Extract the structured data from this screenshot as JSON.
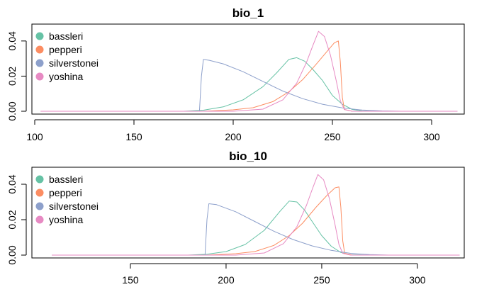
{
  "chart_data": [
    {
      "type": "line",
      "title": "bio_1",
      "xlabel": "",
      "ylabel": "",
      "xlim": [
        100,
        315
      ],
      "ylim": [
        0,
        0.048
      ],
      "xticks": [
        100,
        150,
        200,
        250,
        300
      ],
      "yticks": [
        0.0,
        0.02,
        0.04
      ],
      "ytick_labels": [
        "0.00",
        "0.02",
        "0.04"
      ],
      "legend": "top-left",
      "series": [
        {
          "name": "bassleri",
          "color": "#66c2a5",
          "points": [
            [
              103,
              0
            ],
            [
              175,
              0
            ],
            [
              185,
              0.0006
            ],
            [
              195,
              0.0025
            ],
            [
              205,
              0.0065
            ],
            [
              215,
              0.014
            ],
            [
              222,
              0.022
            ],
            [
              228,
              0.0295
            ],
            [
              232,
              0.0305
            ],
            [
              236,
              0.0285
            ],
            [
              240,
              0.024
            ],
            [
              245,
              0.0175
            ],
            [
              250,
              0.009
            ],
            [
              255,
              0.004
            ],
            [
              260,
              0.001
            ],
            [
              265,
              0.0002
            ],
            [
              272,
              0
            ],
            [
              313,
              0
            ]
          ]
        },
        {
          "name": "pepperi",
          "color": "#fc8d62",
          "points": [
            [
              103,
              0
            ],
            [
              185,
              0
            ],
            [
              200,
              0.0008
            ],
            [
              210,
              0.002
            ],
            [
              220,
              0.0055
            ],
            [
              228,
              0.011
            ],
            [
              235,
              0.018
            ],
            [
              242,
              0.027
            ],
            [
              248,
              0.035
            ],
            [
              251,
              0.039
            ],
            [
              253,
              0.04
            ],
            [
              254,
              0.028
            ],
            [
              255,
              0.008
            ],
            [
              256,
              0.001
            ],
            [
              260,
              0
            ],
            [
              313,
              0
            ]
          ]
        },
        {
          "name": "silverstonei",
          "color": "#8da0cb",
          "points": [
            [
              103,
              0
            ],
            [
              183,
              0
            ],
            [
              184,
              0.02
            ],
            [
              185,
              0.0295
            ],
            [
              188,
              0.029
            ],
            [
              195,
              0.027
            ],
            [
              205,
              0.0225
            ],
            [
              215,
              0.017
            ],
            [
              225,
              0.0115
            ],
            [
              235,
              0.0072
            ],
            [
              245,
              0.004
            ],
            [
              255,
              0.0019
            ],
            [
              265,
              0.0007
            ],
            [
              275,
              0.0002
            ],
            [
              285,
              0
            ],
            [
              313,
              0
            ]
          ]
        },
        {
          "name": "yoshina",
          "color": "#e78ac3",
          "points": [
            [
              103,
              0
            ],
            [
              200,
              0
            ],
            [
              215,
              0.0012
            ],
            [
              225,
              0.0065
            ],
            [
              232,
              0.016
            ],
            [
              237,
              0.028
            ],
            [
              240,
              0.037
            ],
            [
              243,
              0.0455
            ],
            [
              246,
              0.0425
            ],
            [
              249,
              0.032
            ],
            [
              252,
              0.017
            ],
            [
              254,
              0.006
            ],
            [
              256,
              0.001
            ],
            [
              260,
              0
            ],
            [
              313,
              0
            ]
          ]
        }
      ]
    },
    {
      "type": "line",
      "title": "bio_10",
      "xlabel": "",
      "ylabel": "",
      "xlim": [
        100,
        323
      ],
      "ylim": [
        0,
        0.048
      ],
      "xticks": [
        150,
        200,
        250,
        300
      ],
      "yticks": [
        0.0,
        0.02,
        0.04
      ],
      "ytick_labels": [
        "0.00",
        "0.02",
        "0.04"
      ],
      "legend": "top-left",
      "series": [
        {
          "name": "bassleri",
          "color": "#66c2a5",
          "points": [
            [
              109,
              0
            ],
            [
              180,
              0
            ],
            [
              190,
              0.0005
            ],
            [
              200,
              0.002
            ],
            [
              210,
              0.006
            ],
            [
              220,
              0.014
            ],
            [
              228,
              0.0245
            ],
            [
              233,
              0.0305
            ],
            [
              237,
              0.03
            ],
            [
              241,
              0.0255
            ],
            [
              245,
              0.019
            ],
            [
              250,
              0.011
            ],
            [
              255,
              0.005
            ],
            [
              260,
              0.0015
            ],
            [
              265,
              0.0002
            ],
            [
              275,
              0
            ],
            [
              322,
              0
            ]
          ]
        },
        {
          "name": "pepperi",
          "color": "#fc8d62",
          "points": [
            [
              109,
              0
            ],
            [
              190,
              0
            ],
            [
              205,
              0.0008
            ],
            [
              215,
              0.002
            ],
            [
              225,
              0.0055
            ],
            [
              233,
              0.011
            ],
            [
              240,
              0.018
            ],
            [
              247,
              0.027
            ],
            [
              253,
              0.034
            ],
            [
              257,
              0.038
            ],
            [
              259,
              0.0385
            ],
            [
              260,
              0.027
            ],
            [
              261,
              0.008
            ],
            [
              262,
              0.001
            ],
            [
              266,
              0
            ],
            [
              322,
              0
            ]
          ]
        },
        {
          "name": "silverstonei",
          "color": "#8da0cb",
          "points": [
            [
              109,
              0
            ],
            [
              189,
              0
            ],
            [
              190,
              0.02
            ],
            [
              191,
              0.029
            ],
            [
              195,
              0.0285
            ],
            [
              205,
              0.0245
            ],
            [
              215,
              0.019
            ],
            [
              225,
              0.0135
            ],
            [
              235,
              0.0088
            ],
            [
              245,
              0.0052
            ],
            [
              255,
              0.0027
            ],
            [
              265,
              0.001
            ],
            [
              275,
              0.0003
            ],
            [
              285,
              0
            ],
            [
              322,
              0
            ]
          ]
        },
        {
          "name": "yoshina",
          "color": "#e78ac3",
          "points": [
            [
              109,
              0
            ],
            [
              205,
              0
            ],
            [
              220,
              0.0012
            ],
            [
              230,
              0.0065
            ],
            [
              237,
              0.016
            ],
            [
              242,
              0.028
            ],
            [
              245,
              0.037
            ],
            [
              248,
              0.0455
            ],
            [
              251,
              0.0425
            ],
            [
              254,
              0.032
            ],
            [
              257,
              0.017
            ],
            [
              259,
              0.006
            ],
            [
              261,
              0.001
            ],
            [
              265,
              0
            ],
            [
              322,
              0
            ]
          ]
        }
      ]
    }
  ]
}
